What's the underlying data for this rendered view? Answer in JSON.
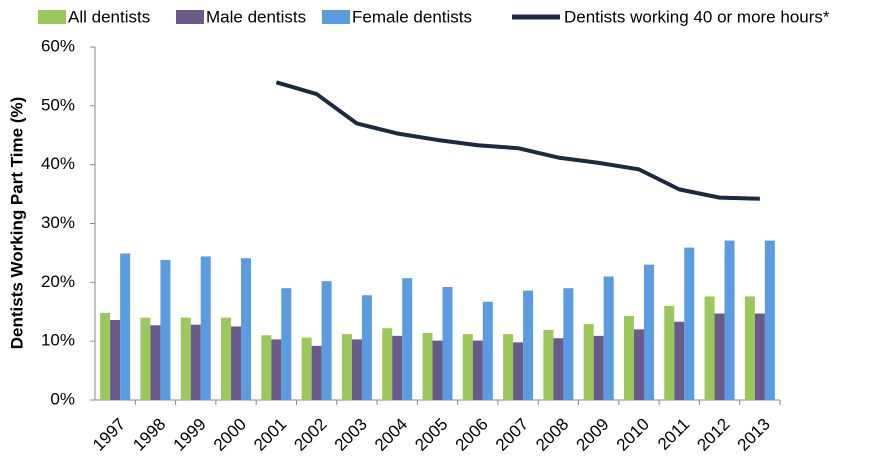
{
  "chart_data": {
    "type": "bar",
    "y_label": "Dentists Working Part Time (%)",
    "categories": [
      "1997",
      "1998",
      "1999",
      "2000",
      "2001",
      "2002",
      "2003",
      "2004",
      "2005",
      "2006",
      "2007",
      "2008",
      "2009",
      "2010",
      "2011",
      "2012",
      "2013"
    ],
    "series": [
      {
        "name": "All dentists",
        "color": "#9bc85a",
        "values": [
          14.8,
          14.0,
          14.0,
          14.0,
          11.0,
          10.6,
          11.2,
          12.2,
          11.4,
          11.2,
          11.2,
          11.9,
          12.9,
          14.3,
          16.0,
          17.6,
          17.6
        ]
      },
      {
        "name": "Male dentists",
        "color": "#6a5a8c",
        "values": [
          13.6,
          12.7,
          12.8,
          12.5,
          10.3,
          9.2,
          10.3,
          10.9,
          10.1,
          10.1,
          9.8,
          10.5,
          10.9,
          12.0,
          13.3,
          14.7,
          14.7
        ]
      },
      {
        "name": "Female dentists",
        "color": "#5b9bdf",
        "values": [
          24.9,
          23.8,
          24.4,
          24.1,
          19.0,
          20.2,
          17.8,
          20.7,
          19.2,
          16.7,
          18.6,
          19.0,
          21.0,
          23.0,
          25.9,
          27.1,
          27.1
        ]
      },
      {
        "name": "Dentists working 40 or more hours*",
        "type": "line",
        "color": "#1b2a41",
        "values": [
          null,
          null,
          null,
          null,
          54.0,
          52.0,
          47.0,
          45.3,
          44.2,
          43.3,
          42.8,
          41.2,
          40.3,
          39.2,
          35.8,
          34.4,
          34.2
        ]
      }
    ],
    "ylim": [
      0,
      60
    ],
    "yticks": [
      {
        "value": 0,
        "label": "0%"
      },
      {
        "value": 10,
        "label": "10%"
      },
      {
        "value": 20,
        "label": "20%"
      },
      {
        "value": 30,
        "label": "30%"
      },
      {
        "value": 40,
        "label": "40%"
      },
      {
        "value": 50,
        "label": "50%"
      },
      {
        "value": 60,
        "label": "60%"
      }
    ],
    "grid": false,
    "legend": "top"
  }
}
